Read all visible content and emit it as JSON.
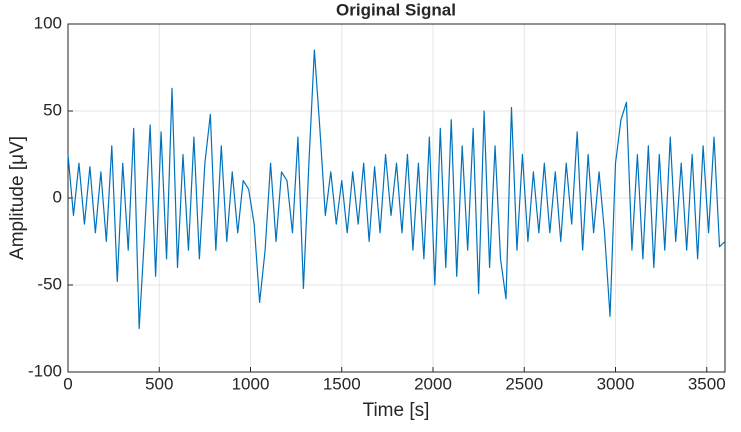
{
  "chart_data": {
    "type": "line",
    "title": "Original Signal",
    "x_label": "Time [s]",
    "y_label": "Amplitude [μV]",
    "x": [
      0,
      30,
      60,
      90,
      120,
      150,
      180,
      210,
      240,
      270,
      300,
      330,
      360,
      390,
      420,
      450,
      480,
      510,
      540,
      570,
      600,
      630,
      660,
      690,
      720,
      750,
      780,
      810,
      840,
      870,
      900,
      930,
      960,
      990,
      1020,
      1050,
      1080,
      1110,
      1140,
      1170,
      1200,
      1230,
      1260,
      1290,
      1320,
      1350,
      1380,
      1410,
      1440,
      1470,
      1500,
      1530,
      1560,
      1590,
      1620,
      1650,
      1680,
      1710,
      1740,
      1770,
      1800,
      1830,
      1860,
      1890,
      1920,
      1950,
      1980,
      2010,
      2040,
      2070,
      2100,
      2130,
      2160,
      2190,
      2220,
      2250,
      2280,
      2310,
      2340,
      2370,
      2400,
      2430,
      2460,
      2490,
      2520,
      2550,
      2580,
      2610,
      2640,
      2670,
      2700,
      2730,
      2760,
      2790,
      2820,
      2850,
      2880,
      2910,
      2940,
      2970,
      3000,
      3030,
      3060,
      3090,
      3120,
      3150,
      3180,
      3210,
      3240,
      3270,
      3300,
      3330,
      3360,
      3390,
      3420,
      3450,
      3480,
      3510,
      3540,
      3570,
      3600
    ],
    "series": [
      {
        "name": "Signal",
        "color": "#0072bd",
        "values": [
          25,
          -10,
          20,
          -15,
          18,
          -20,
          15,
          -25,
          30,
          -48,
          20,
          -30,
          40,
          -75,
          -20,
          42,
          -45,
          38,
          -35,
          63,
          -40,
          25,
          -30,
          35,
          -35,
          20,
          48,
          -30,
          30,
          -25,
          15,
          -20,
          10,
          5,
          -15,
          -60,
          -30,
          20,
          -25,
          15,
          10,
          -20,
          35,
          -52,
          20,
          85,
          40,
          -10,
          15,
          -15,
          10,
          -20,
          15,
          -15,
          20,
          -25,
          18,
          -20,
          25,
          -10,
          20,
          -20,
          25,
          -30,
          20,
          -35,
          35,
          -50,
          40,
          -40,
          45,
          -45,
          30,
          -30,
          40,
          -55,
          50,
          -40,
          30,
          -35,
          -58,
          52,
          -30,
          25,
          -25,
          15,
          -20,
          20,
          -20,
          15,
          -25,
          20,
          -15,
          38,
          -30,
          25,
          -20,
          15,
          -20,
          -68,
          20,
          45,
          55,
          -30,
          25,
          -35,
          30,
          -40,
          25,
          -30,
          35,
          -25,
          20,
          -30,
          25,
          -35,
          30,
          -20,
          35,
          -28,
          -25
        ]
      }
    ],
    "xlim": [
      0,
      3600
    ],
    "ylim": [
      -100,
      100
    ],
    "xticks": [
      0,
      500,
      1000,
      1500,
      2000,
      2500,
      3000,
      3500
    ],
    "yticks": [
      -100,
      -50,
      0,
      50,
      100
    ],
    "grid": true
  }
}
